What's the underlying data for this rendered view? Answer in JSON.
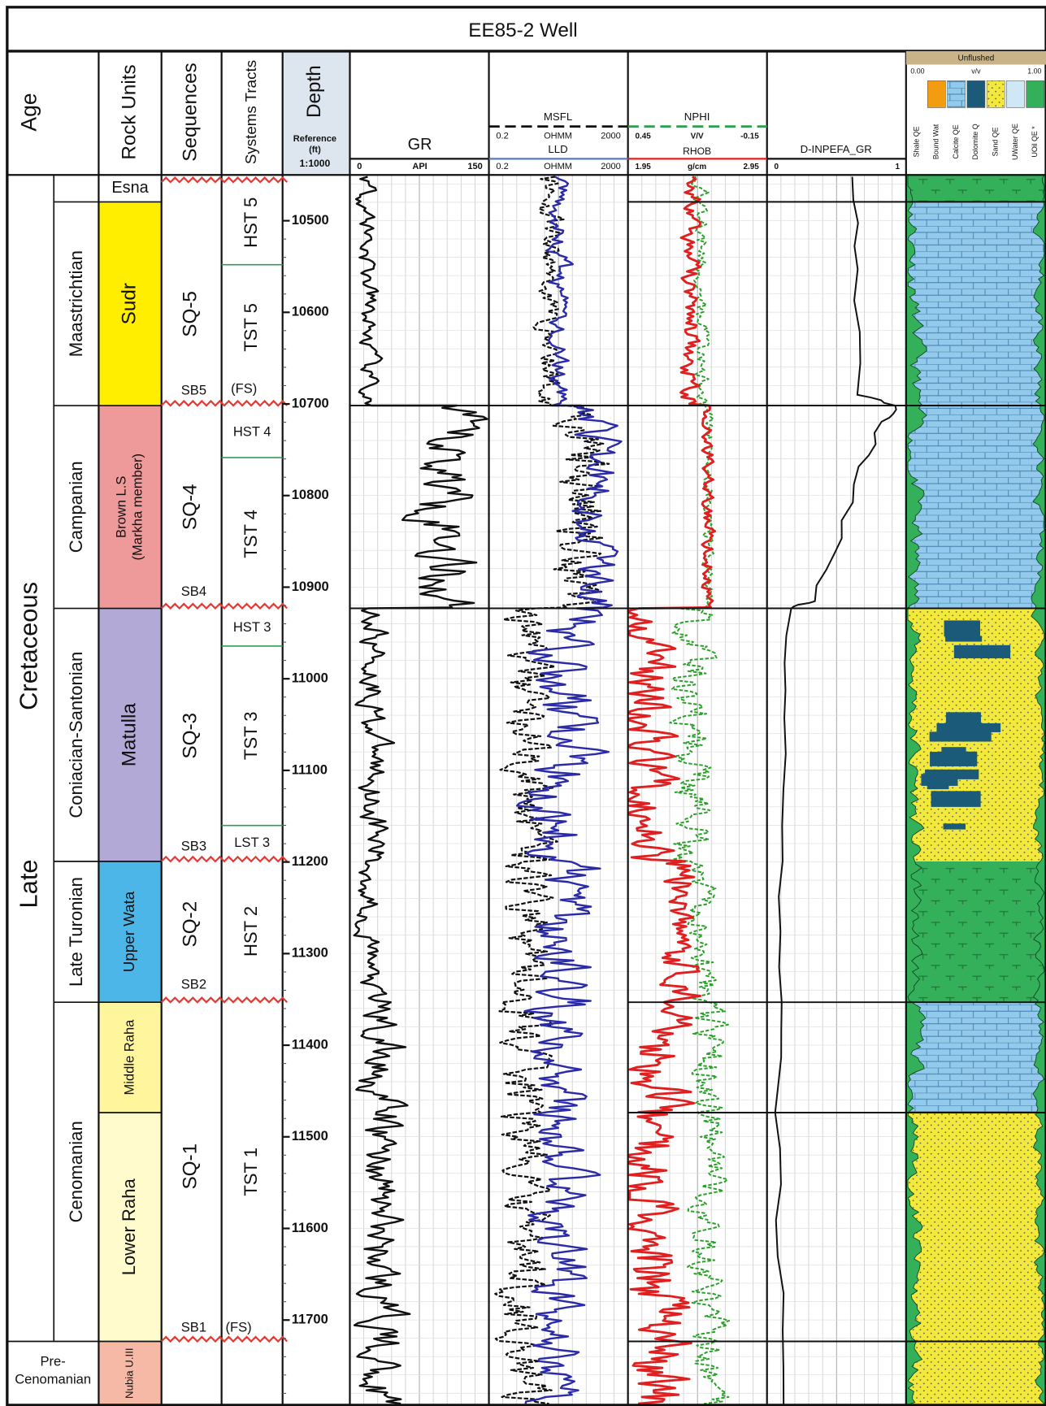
{
  "header": {
    "title": "EE85-2 Well"
  },
  "columns": {
    "age": "Age",
    "rock_units": "Rock Units",
    "sequences": "Sequences",
    "systems_tracts": "Systems Tracts",
    "depth": "Depth",
    "depth_reference": [
      "Reference",
      "(ft)"
    ],
    "depth_scale": "1:1000"
  },
  "tracks": {
    "gr": {
      "name": "GR",
      "min": "0",
      "unit": "API",
      "max": "150"
    },
    "resistivity": {
      "msfl": "MSFL",
      "msfl_min": "0.2",
      "msfl_unit": "OHMM",
      "msfl_max": "2000",
      "lld": "LLD",
      "lld_min": "0.2",
      "lld_unit": "OHMM",
      "lld_max": "2000"
    },
    "porosity": {
      "nphi": "NPHI",
      "nphi_min": "0.45",
      "nphi_unit": "V/V",
      "nphi_max": "-0.15",
      "rhob": "RHOB",
      "rhob_min": "1.95",
      "rhob_unit": "g/cm",
      "rhob_max": "2.95"
    },
    "inpefa": {
      "name": "D-INPEFA_GR",
      "min": "0",
      "max": "1"
    },
    "lithology": {
      "title": "Unflushed",
      "min": "0.00",
      "unit": "v/v",
      "max": "1.00",
      "legend": [
        "Shale QE",
        "Bound Wat",
        "Calcite QE",
        "Dolomite Q",
        "Sand QE",
        "UWater QE",
        "UOil QE *"
      ]
    }
  },
  "era": {
    "period": "Cretaceous",
    "epoch": "Late"
  },
  "ages": [
    "Maastrichtian",
    "Campanian",
    "Coniacian-Santonian",
    "Late Turonian",
    "Cenomanian"
  ],
  "base_age": [
    "Pre-",
    "Cenomanian"
  ],
  "rock_units": [
    {
      "lines": [
        "Esna"
      ]
    },
    {
      "lines": [
        "Sudr"
      ]
    },
    {
      "lines": [
        "Brown L.S",
        "(Markha member)"
      ]
    },
    {
      "lines": [
        "Matulla"
      ]
    },
    {
      "lines": [
        "Upper Wata"
      ]
    },
    {
      "lines": [
        "Middle Raha"
      ]
    },
    {
      "lines": [
        "Lower Raha"
      ]
    },
    {
      "lines": [
        "Nubia U.III"
      ]
    }
  ],
  "sequences": [
    {
      "name": "SQ-5",
      "boundary": "SB5"
    },
    {
      "name": "SQ-4",
      "boundary": "SB4"
    },
    {
      "name": "SQ-3",
      "boundary": "SB3"
    },
    {
      "name": "SQ-2",
      "boundary": "SB2"
    },
    {
      "name": "SQ-1",
      "boundary": "SB1"
    }
  ],
  "systems_tracts": [
    "HST 5",
    "TST 5",
    "HST 4",
    "TST 4",
    "HST 3",
    "TST 3",
    "LST 3",
    "HST 2",
    "TST 1"
  ],
  "flooding_surfaces": [
    "(FS)",
    "(FS)"
  ],
  "depth_ticks": [
    10500,
    10600,
    10700,
    10800,
    10900,
    11000,
    11100,
    11200,
    11300,
    11400,
    11500,
    11600,
    11700
  ]
}
